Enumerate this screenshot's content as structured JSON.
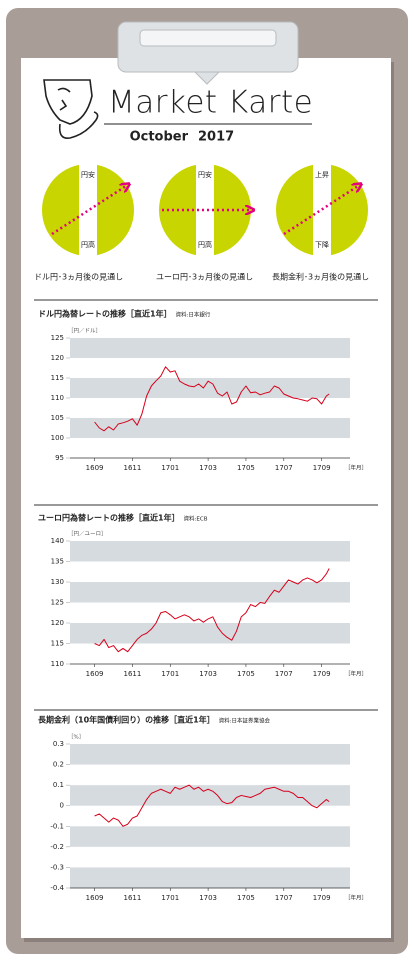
{
  "header": {
    "title": "Market Karte",
    "month": "October",
    "year": "2017"
  },
  "outlooks": [
    {
      "top": "円安",
      "bottom": "円高",
      "caption": "ドル円･3ヵ月後の見通し"
    },
    {
      "top": "円安",
      "bottom": "円高",
      "caption": "ユーロ円･3ヵ月後の見通し"
    },
    {
      "top": "上昇",
      "bottom": "下降",
      "caption": "長期金利･3ヵ月後の見通し"
    }
  ],
  "chart_data": [
    {
      "type": "line",
      "title": "ドル円為替レートの推移［直近1年］",
      "source": "資料:日本銀行",
      "y_unit": "［円／ドル］",
      "x_unit": "［年月］",
      "color": "#d7001a",
      "bands": true,
      "x": [
        0,
        0.25,
        0.5,
        0.75,
        1,
        1.25,
        1.5,
        1.75,
        2,
        2.25,
        2.5,
        2.75,
        3,
        3.25,
        3.5,
        3.75,
        4,
        4.25,
        4.5,
        4.75,
        5,
        5.25,
        5.5,
        5.75,
        6,
        6.25,
        6.5,
        6.75,
        7,
        7.25,
        7.5,
        7.75,
        8,
        8.25,
        8.5,
        8.75,
        9,
        9.25,
        9.5,
        9.75,
        10,
        10.25,
        10.5,
        10.75,
        11,
        11.25,
        11.5,
        11.75,
        12,
        12.25,
        12.4
      ],
      "values": [
        104,
        102.5,
        101.8,
        102.8,
        102,
        103.5,
        103.8,
        104.2,
        104.8,
        103.2,
        106,
        110.5,
        113,
        114.3,
        115.5,
        117.8,
        116.5,
        116.8,
        114.2,
        113.5,
        113,
        112.8,
        113.5,
        112.5,
        114.2,
        113.5,
        111.2,
        110.5,
        111.5,
        108.5,
        109,
        111.5,
        113,
        111.3,
        111.5,
        110.8,
        111.2,
        111.5,
        113,
        112.5,
        111,
        110.5,
        110,
        109.8,
        109.5,
        109.2,
        110,
        109.8,
        108.5,
        110.5,
        111
      ],
      "xlim": [
        -1.3,
        13.5
      ],
      "xticks": [
        {
          "value": 0,
          "label": "1609"
        },
        {
          "value": 2,
          "label": "1611"
        },
        {
          "value": 4,
          "label": "1701"
        },
        {
          "value": 6,
          "label": "1703"
        },
        {
          "value": 8,
          "label": "1705"
        },
        {
          "value": 10,
          "label": "1707"
        },
        {
          "value": 12,
          "label": "1709"
        }
      ],
      "ylim": [
        95,
        125
      ],
      "yticks": [
        95,
        100,
        105,
        110,
        115,
        120,
        125
      ]
    },
    {
      "type": "line",
      "title": "ユーロ円為替レートの推移［直近1年］",
      "source": "資料:ECB",
      "y_unit": "［円／ユーロ］",
      "x_unit": "［年月］",
      "color": "#d7001a",
      "bands": true,
      "x": [
        0,
        0.25,
        0.5,
        0.75,
        1,
        1.25,
        1.5,
        1.75,
        2,
        2.25,
        2.5,
        2.75,
        3,
        3.25,
        3.5,
        3.75,
        4,
        4.25,
        4.5,
        4.75,
        5,
        5.25,
        5.5,
        5.75,
        6,
        6.25,
        6.5,
        6.75,
        7,
        7.25,
        7.5,
        7.75,
        8,
        8.25,
        8.5,
        8.75,
        9,
        9.25,
        9.5,
        9.75,
        10,
        10.25,
        10.5,
        10.75,
        11,
        11.25,
        11.5,
        11.75,
        12,
        12.25,
        12.4
      ],
      "values": [
        115,
        114.5,
        116,
        114,
        114.5,
        113,
        113.8,
        113,
        114.5,
        116,
        117,
        117.5,
        118.5,
        120,
        122.5,
        122.8,
        122,
        121,
        121.5,
        122,
        121.5,
        120.5,
        121,
        120.2,
        121,
        121.5,
        119,
        117.5,
        116.5,
        115.8,
        118,
        121.5,
        122.5,
        124.5,
        124,
        125,
        124.8,
        126.5,
        128,
        127.5,
        129,
        130.5,
        130,
        129.5,
        130.5,
        131,
        130.5,
        129.8,
        130.5,
        132,
        133.3
      ],
      "xlim": [
        -1.3,
        13.5
      ],
      "xticks": [
        {
          "value": 0,
          "label": "1609"
        },
        {
          "value": 2,
          "label": "1611"
        },
        {
          "value": 4,
          "label": "1701"
        },
        {
          "value": 6,
          "label": "1703"
        },
        {
          "value": 8,
          "label": "1705"
        },
        {
          "value": 10,
          "label": "1707"
        },
        {
          "value": 12,
          "label": "1709"
        }
      ],
      "ylim": [
        110,
        140
      ],
      "yticks": [
        110,
        115,
        120,
        125,
        130,
        135,
        140
      ]
    },
    {
      "type": "line",
      "title": "長期金利（10年国債利回り）の推移［直近1年］",
      "source": "資料:日本証券業協会",
      "y_unit": "［%］",
      "x_unit": "［年月］",
      "color": "#d7001a",
      "bands": true,
      "x": [
        0,
        0.25,
        0.5,
        0.75,
        1,
        1.25,
        1.5,
        1.75,
        2,
        2.25,
        2.5,
        2.75,
        3,
        3.25,
        3.5,
        3.75,
        4,
        4.25,
        4.5,
        4.75,
        5,
        5.25,
        5.5,
        5.75,
        6,
        6.25,
        6.5,
        6.75,
        7,
        7.25,
        7.5,
        7.75,
        8,
        8.25,
        8.5,
        8.75,
        9,
        9.25,
        9.5,
        9.75,
        10,
        10.25,
        10.5,
        10.75,
        11,
        11.25,
        11.5,
        11.75,
        12,
        12.25,
        12.4
      ],
      "values": [
        -0.05,
        -0.04,
        -0.06,
        -0.08,
        -0.06,
        -0.07,
        -0.1,
        -0.09,
        -0.06,
        -0.05,
        -0.01,
        0.03,
        0.06,
        0.07,
        0.08,
        0.07,
        0.06,
        0.09,
        0.08,
        0.09,
        0.1,
        0.08,
        0.09,
        0.07,
        0.08,
        0.07,
        0.05,
        0.02,
        0.01,
        0.015,
        0.04,
        0.05,
        0.045,
        0.04,
        0.05,
        0.06,
        0.08,
        0.085,
        0.09,
        0.08,
        0.07,
        0.07,
        0.06,
        0.04,
        0.04,
        0.02,
        0,
        -0.01,
        0.01,
        0.03,
        0.02
      ],
      "xlim": [
        -1.3,
        13.5
      ],
      "xticks": [
        {
          "value": 0,
          "label": "1609"
        },
        {
          "value": 2,
          "label": "1611"
        },
        {
          "value": 4,
          "label": "1701"
        },
        {
          "value": 6,
          "label": "1703"
        },
        {
          "value": 8,
          "label": "1705"
        },
        {
          "value": 10,
          "label": "1707"
        },
        {
          "value": 12,
          "label": "1709"
        }
      ],
      "ylim": [
        -0.4,
        0.3
      ],
      "yticks": [
        -0.4,
        -0.3,
        -0.2,
        -0.1,
        0,
        0.1,
        0.2,
        0.3
      ]
    }
  ]
}
